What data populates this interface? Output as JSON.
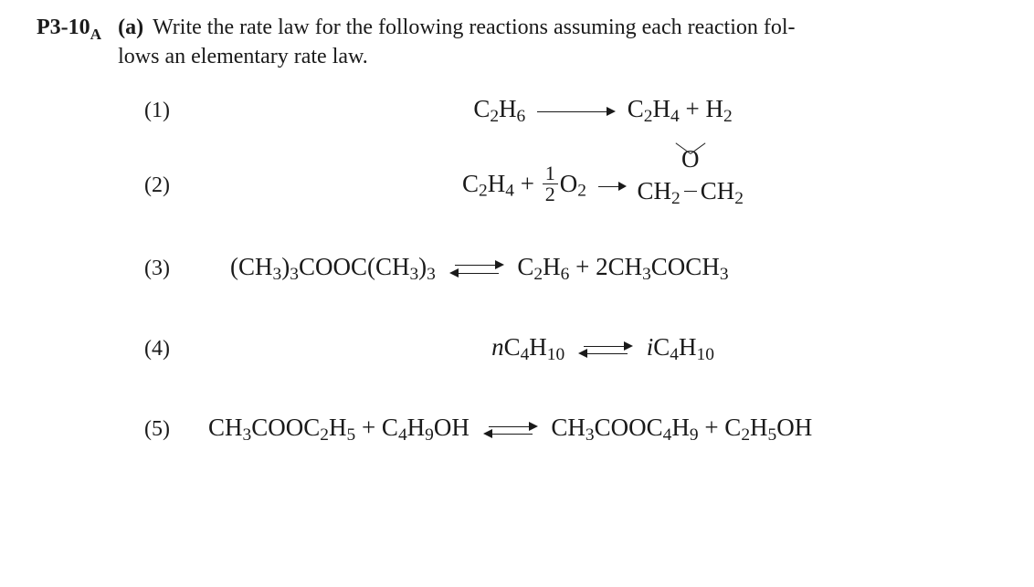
{
  "colors": {
    "text": "#1a1a1a",
    "background": "#ffffff"
  },
  "typography": {
    "family": "Times New Roman, serif",
    "body_size_pt": 18,
    "equation_size_pt": 20
  },
  "problem": {
    "id_main": "P3-10",
    "id_sub": "A",
    "part": "(a)",
    "prompt_line1": "Write the rate law for the following reactions assuming each reaction fol-",
    "prompt_line2": "lows an elementary rate law."
  },
  "reactions": [
    {
      "num": "(1)",
      "type": "irreversible",
      "arrow": "long",
      "lhs": {
        "t1": "C",
        "s1": "2",
        "t2": "H",
        "s2": "6"
      },
      "rhs": {
        "t1": "C",
        "s1": "2",
        "t2": "H",
        "s2": "4",
        "plus": " + H",
        "s3": "2"
      }
    },
    {
      "num": "(2)",
      "type": "irreversible",
      "arrow": "short",
      "lhs": {
        "t1": "C",
        "s1": "2",
        "t2": "H",
        "s2": "4",
        "plus": " + ",
        "frac_num": "1",
        "frac_den": "2",
        "t3": "O",
        "s3": "2"
      },
      "rhs_epoxide": {
        "left": "CH",
        "left_sub": "2",
        "right": "CH",
        "right_sub": "2",
        "top": "O"
      }
    },
    {
      "num": "(3)",
      "type": "reversible",
      "lhs_text": {
        "a": "(CH",
        "a_s": "3",
        "b": ")",
        "b_s": "3",
        "c": "COOC(CH",
        "c_s": "3",
        "d": ")",
        "d_s": "3"
      },
      "rhs_text": {
        "a": "C",
        "a_s": "2",
        "b": "H",
        "b_s": "6",
        "plus": " + 2CH",
        "c_s": "3",
        "d": "COCH",
        "d_s": "3"
      }
    },
    {
      "num": "(4)",
      "type": "reversible",
      "lhs_iso": {
        "prefix": "n",
        "core": "C",
        "s1": "4",
        "core2": "H",
        "s2": "10"
      },
      "rhs_iso": {
        "prefix": "i",
        "core": "C",
        "s1": "4",
        "core2": "H",
        "s2": "10"
      }
    },
    {
      "num": "(5)",
      "type": "reversible",
      "lhs5": {
        "a": "CH",
        "a_s": "3",
        "b": "COOC",
        "b_s": "2",
        "c": "H",
        "c_s": "5",
        "plus": " + C",
        "d_s": "4",
        "e": "H",
        "e_s": "9",
        "f": "OH"
      },
      "rhs5": {
        "a": "CH",
        "a_s": "3",
        "b": "COOC",
        "b_s": "4",
        "c": "H",
        "c_s": "9",
        "plus": " + C",
        "d_s": "2",
        "e": "H",
        "e_s": "5",
        "f": "OH"
      }
    }
  ]
}
